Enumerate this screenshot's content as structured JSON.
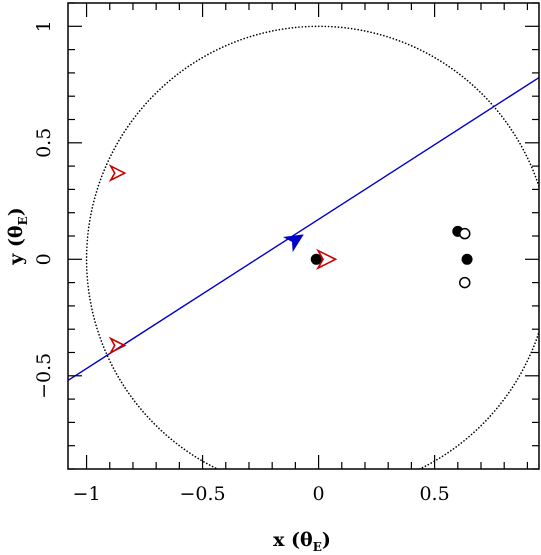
{
  "chart_data": {
    "type": "scatter",
    "title": "",
    "xlabel": "x (θ",
    "xlabel_sub": "E",
    "xlabel_close": ")",
    "ylabel": "y (θ",
    "ylabel_sub": "E",
    "ylabel_close": ")",
    "xlim": [
      -1.08,
      0.95
    ],
    "ylim": [
      -0.9,
      1.1
    ],
    "xticks": [
      -1,
      -0.5,
      0,
      0.5
    ],
    "xtick_labels": [
      "−1",
      "−0.5",
      "0",
      "0.5"
    ],
    "yticks": [
      -0.5,
      0,
      0.5,
      1
    ],
    "ytick_labels": [
      "−0.5",
      "0",
      "0.5",
      "1"
    ],
    "x_minor_step": 0.1,
    "y_minor_step": 0.1,
    "grid": false,
    "einstein_ring": {
      "cx": 0,
      "cy": 0,
      "r": 1.0,
      "style": "dotted",
      "color": "#000000"
    },
    "source_trajectory": {
      "color": "#0000cc",
      "x": [
        -1.08,
        0.95
      ],
      "y": [
        -0.52,
        0.78
      ],
      "arrow_at": {
        "x": -0.1,
        "y": 0.084
      }
    },
    "series": [
      {
        "marker": "filled-circle",
        "color": "#000000",
        "points": [
          {
            "x": -0.01,
            "y": 0.0
          },
          {
            "x": 0.6,
            "y": 0.12
          },
          {
            "x": 0.64,
            "y": 0.0
          }
        ]
      },
      {
        "marker": "open-circle",
        "color": "#000000",
        "points": [
          {
            "x": 0.63,
            "y": 0.11
          },
          {
            "x": 0.63,
            "y": -0.1
          }
        ]
      },
      {
        "marker": "open-triangle",
        "color": "#cc0000",
        "points": [
          {
            "x": -0.87,
            "y": 0.37,
            "direction": "right"
          },
          {
            "x": 0.03,
            "y": 0.0,
            "direction": "right",
            "scale": 1.25
          },
          {
            "x": -0.87,
            "y": -0.37,
            "direction": "right"
          }
        ]
      }
    ]
  }
}
